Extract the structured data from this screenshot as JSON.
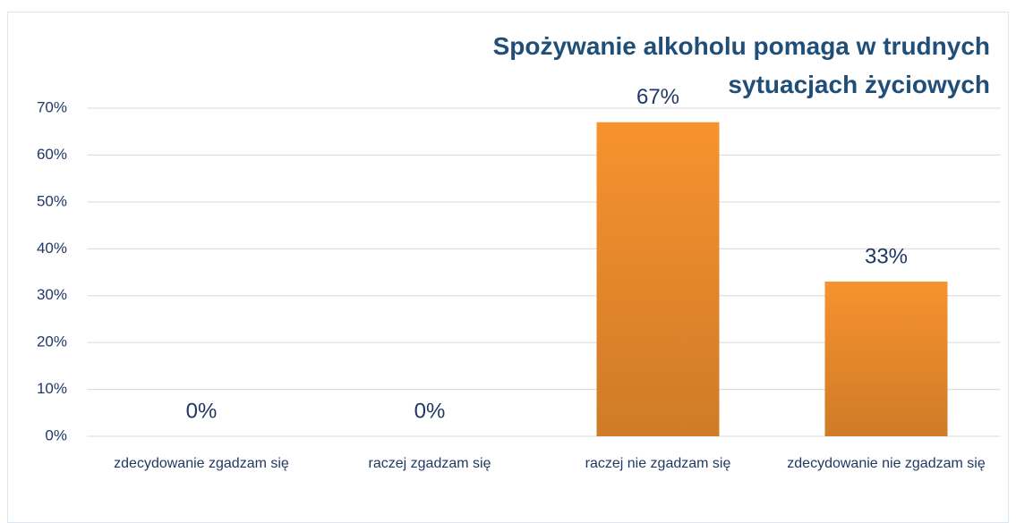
{
  "chart_data": {
    "type": "bar",
    "title": "Spożywanie alkoholu pomaga w trudnych sytuacjach życiowych",
    "categories": [
      "zdecydowanie zgadzam się",
      "raczej zgadzam się",
      "raczej nie zgadzam się",
      "zdecydowanie nie zgadzam się"
    ],
    "values": [
      0,
      0,
      67,
      33
    ],
    "value_labels": [
      "0%",
      "0%",
      "67%",
      "33%"
    ],
    "color": "#f7922f",
    "ylim": [
      0,
      70
    ],
    "yticks": [
      {
        "value": 0,
        "label": "0%"
      },
      {
        "value": 10,
        "label": "10%"
      },
      {
        "value": 20,
        "label": "20%"
      },
      {
        "value": 30,
        "label": "30%"
      },
      {
        "value": 40,
        "label": "40%"
      },
      {
        "value": 50,
        "label": "50%"
      },
      {
        "value": 60,
        "label": "60%"
      },
      {
        "value": 70,
        "label": "70%"
      }
    ],
    "grid": true
  }
}
